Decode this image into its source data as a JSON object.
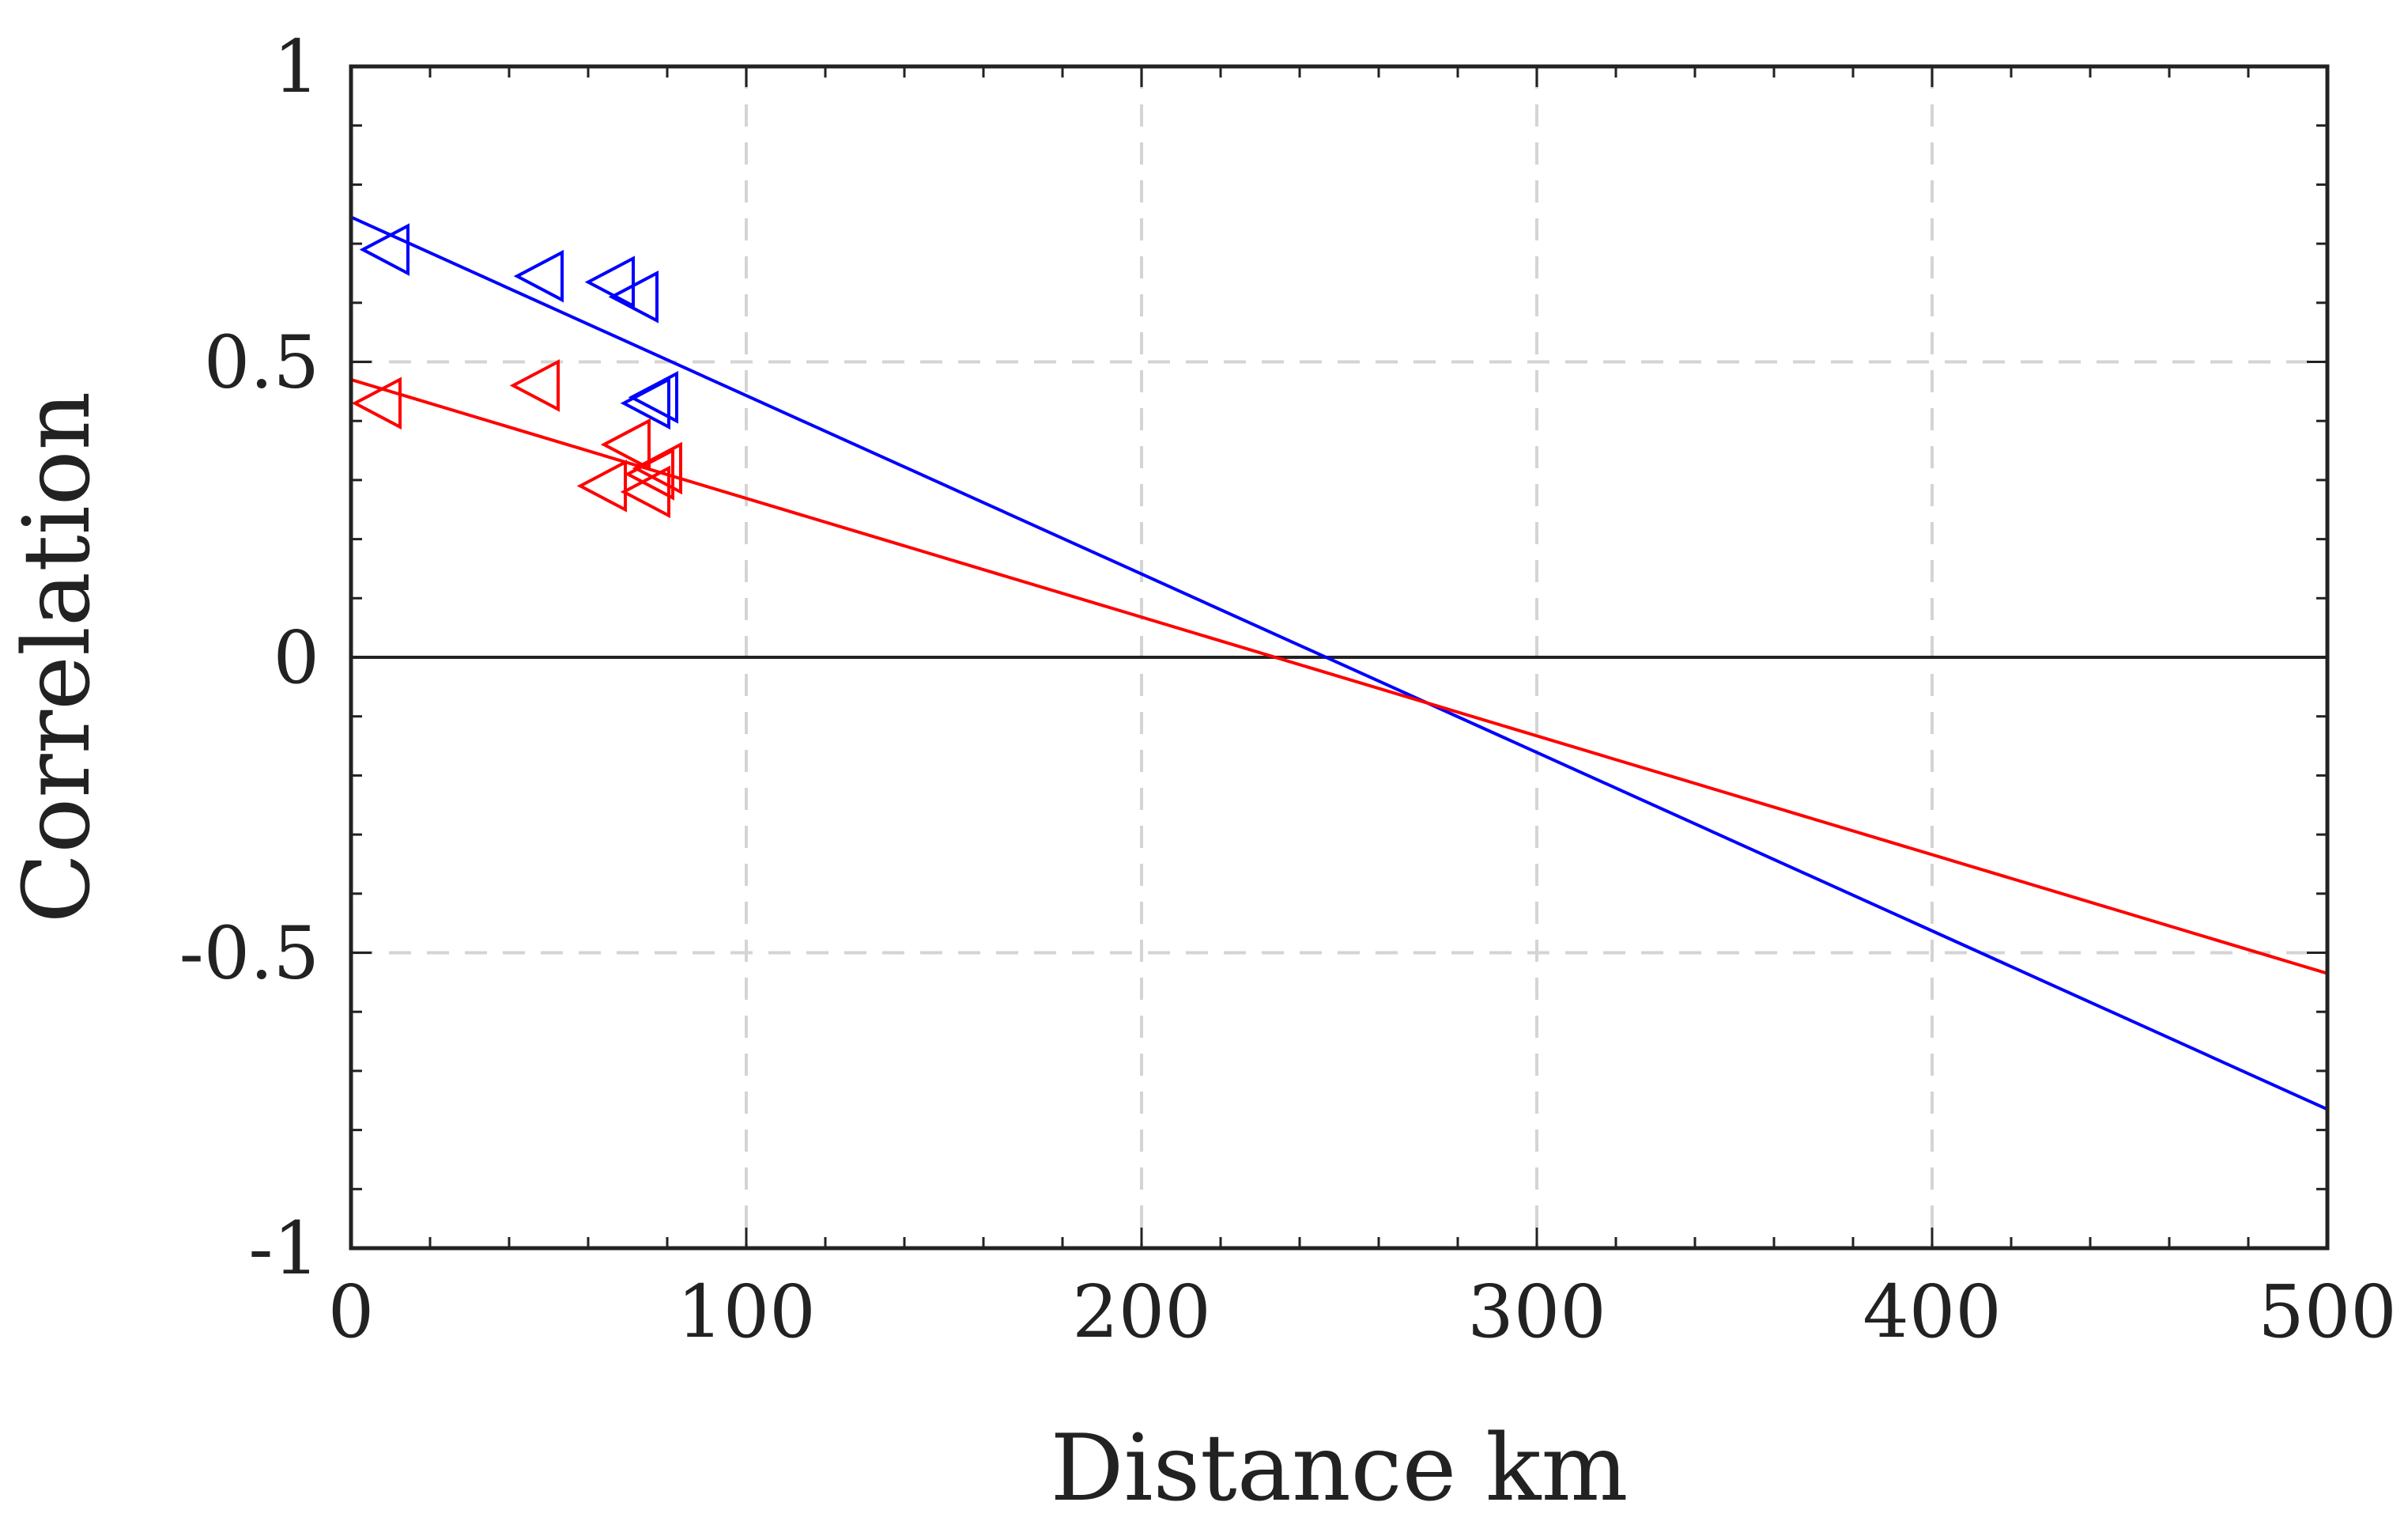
{
  "chart_data": {
    "type": "scatter",
    "title": "",
    "xlabel": "Distance km",
    "ylabel": "Correlation",
    "xlim": [
      0,
      500
    ],
    "ylim": [
      -1,
      1
    ],
    "xticks": [
      0,
      100,
      200,
      300,
      400,
      500
    ],
    "yticks": [
      -1,
      -0.5,
      0,
      0.5,
      1
    ],
    "xtick_labels": [
      "0",
      "100",
      "200",
      "300",
      "400",
      "500"
    ],
    "ytick_labels": [
      "-1",
      "-0.5",
      "0",
      "0.5",
      "1"
    ],
    "grid": true,
    "legend": "none",
    "zero_line": true,
    "series": [
      {
        "name": "blue",
        "color": "#0000ff",
        "marker": "triangle-left",
        "x": [
          9,
          48,
          66,
          72,
          75,
          77
        ],
        "y": [
          0.69,
          0.645,
          0.635,
          0.61,
          0.43,
          0.44
        ],
        "fit": {
          "type": "linear",
          "x": [
            0,
            500
          ],
          "y": [
            0.745,
            -0.765
          ]
        }
      },
      {
        "name": "red",
        "color": "#ff0000",
        "marker": "triangle-left",
        "x": [
          7,
          47,
          64,
          70,
          75,
          76,
          78
        ],
        "y": [
          0.43,
          0.46,
          0.29,
          0.36,
          0.28,
          0.31,
          0.32
        ],
        "fit": {
          "type": "linear",
          "x": [
            0,
            500
          ],
          "y": [
            0.47,
            -0.535
          ]
        }
      }
    ]
  }
}
